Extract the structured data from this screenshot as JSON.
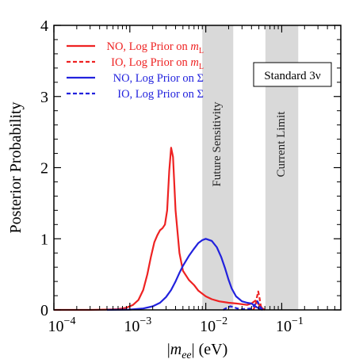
{
  "chart_data": {
    "type": "line",
    "xlabel_parts": [
      "|",
      "m",
      "ee",
      "| (eV)"
    ],
    "ylabel": "Posterior Probability",
    "x_scale": "log",
    "xlim": [
      0.0001,
      0.6
    ],
    "ylim": [
      0,
      4
    ],
    "x_ticks": [
      {
        "value": 0.0001,
        "base": "10",
        "exp": "−4"
      },
      {
        "value": 0.001,
        "base": "10",
        "exp": "−3"
      },
      {
        "value": 0.01,
        "base": "10",
        "exp": "−2"
      },
      {
        "value": 0.1,
        "base": "10",
        "exp": "−1"
      }
    ],
    "y_ticks": [
      0,
      1,
      2,
      3,
      4
    ],
    "annotation_box": {
      "text": "Standard 3ν"
    },
    "bands": [
      {
        "label": "Future Sensitivity",
        "x_range": [
          0.009,
          0.023
        ],
        "color": "#d9d9d9"
      },
      {
        "label": "Current Limit",
        "x_range": [
          0.061,
          0.165
        ],
        "color": "#d9d9d9"
      }
    ],
    "series": [
      {
        "name_parts": [
          "NO, Log Prior on ",
          "m",
          "L"
        ],
        "color": "#ee2222",
        "dash": "solid",
        "points": [
          [
            0.0001,
            0.0
          ],
          [
            0.0003,
            0.0
          ],
          [
            0.0005,
            0.005
          ],
          [
            0.0007,
            0.01
          ],
          [
            0.0009,
            0.03
          ],
          [
            0.0011,
            0.07
          ],
          [
            0.0013,
            0.14
          ],
          [
            0.0015,
            0.28
          ],
          [
            0.0017,
            0.5
          ],
          [
            0.0019,
            0.75
          ],
          [
            0.0021,
            0.95
          ],
          [
            0.0023,
            1.05
          ],
          [
            0.0025,
            1.12
          ],
          [
            0.0027,
            1.15
          ],
          [
            0.0029,
            1.2
          ],
          [
            0.0031,
            1.4
          ],
          [
            0.0033,
            1.95
          ],
          [
            0.0035,
            2.28
          ],
          [
            0.0037,
            2.15
          ],
          [
            0.004,
            1.4
          ],
          [
            0.0045,
            0.8
          ],
          [
            0.005,
            0.55
          ],
          [
            0.006,
            0.42
          ],
          [
            0.007,
            0.35
          ],
          [
            0.008,
            0.27
          ],
          [
            0.01,
            0.19
          ],
          [
            0.012,
            0.15
          ],
          [
            0.015,
            0.12
          ],
          [
            0.02,
            0.1
          ],
          [
            0.025,
            0.09
          ],
          [
            0.03,
            0.08
          ],
          [
            0.035,
            0.07
          ],
          [
            0.04,
            0.09
          ],
          [
            0.045,
            0.13
          ],
          [
            0.048,
            0.1
          ],
          [
            0.052,
            0.05
          ],
          [
            0.056,
            0.02
          ],
          [
            0.06,
            0.0
          ]
        ]
      },
      {
        "name_parts": [
          "IO, Log Prior on ",
          "m",
          "L"
        ],
        "color": "#ee2222",
        "dash": "dashed",
        "points": [
          [
            0.042,
            0.0
          ],
          [
            0.045,
            0.05
          ],
          [
            0.047,
            0.17
          ],
          [
            0.049,
            0.26
          ],
          [
            0.051,
            0.17
          ],
          [
            0.053,
            0.06
          ],
          [
            0.056,
            0.0
          ]
        ]
      },
      {
        "name_parts": [
          "NO, Log Prior on ",
          "Σ",
          ""
        ],
        "color": "#2222dd",
        "dash": "solid",
        "points": [
          [
            0.0005,
            0.0
          ],
          [
            0.001,
            0.005
          ],
          [
            0.0015,
            0.02
          ],
          [
            0.002,
            0.05
          ],
          [
            0.0025,
            0.1
          ],
          [
            0.003,
            0.18
          ],
          [
            0.0035,
            0.28
          ],
          [
            0.004,
            0.4
          ],
          [
            0.0045,
            0.52
          ],
          [
            0.005,
            0.62
          ],
          [
            0.006,
            0.76
          ],
          [
            0.007,
            0.86
          ],
          [
            0.008,
            0.94
          ],
          [
            0.009,
            0.98
          ],
          [
            0.01,
            1.0
          ],
          [
            0.012,
            0.97
          ],
          [
            0.014,
            0.88
          ],
          [
            0.016,
            0.74
          ],
          [
            0.018,
            0.58
          ],
          [
            0.02,
            0.42
          ],
          [
            0.022,
            0.3
          ],
          [
            0.025,
            0.19
          ],
          [
            0.03,
            0.12
          ],
          [
            0.035,
            0.1
          ],
          [
            0.04,
            0.09
          ],
          [
            0.045,
            0.05
          ],
          [
            0.05,
            0.02
          ],
          [
            0.056,
            0.0
          ]
        ]
      },
      {
        "name_parts": [
          "IO, Log Prior on ",
          "Σ",
          ""
        ],
        "color": "#2222dd",
        "dash": "dashed",
        "points": [
          [
            0.017,
            0.0
          ],
          [
            0.019,
            0.03
          ],
          [
            0.021,
            0.05
          ],
          [
            0.023,
            0.04
          ],
          [
            0.026,
            0.02
          ],
          [
            0.03,
            0.01
          ],
          [
            0.04,
            0.02
          ],
          [
            0.045,
            0.08
          ],
          [
            0.048,
            0.12
          ],
          [
            0.05,
            0.08
          ],
          [
            0.053,
            0.03
          ],
          [
            0.057,
            0.0
          ]
        ]
      }
    ]
  }
}
